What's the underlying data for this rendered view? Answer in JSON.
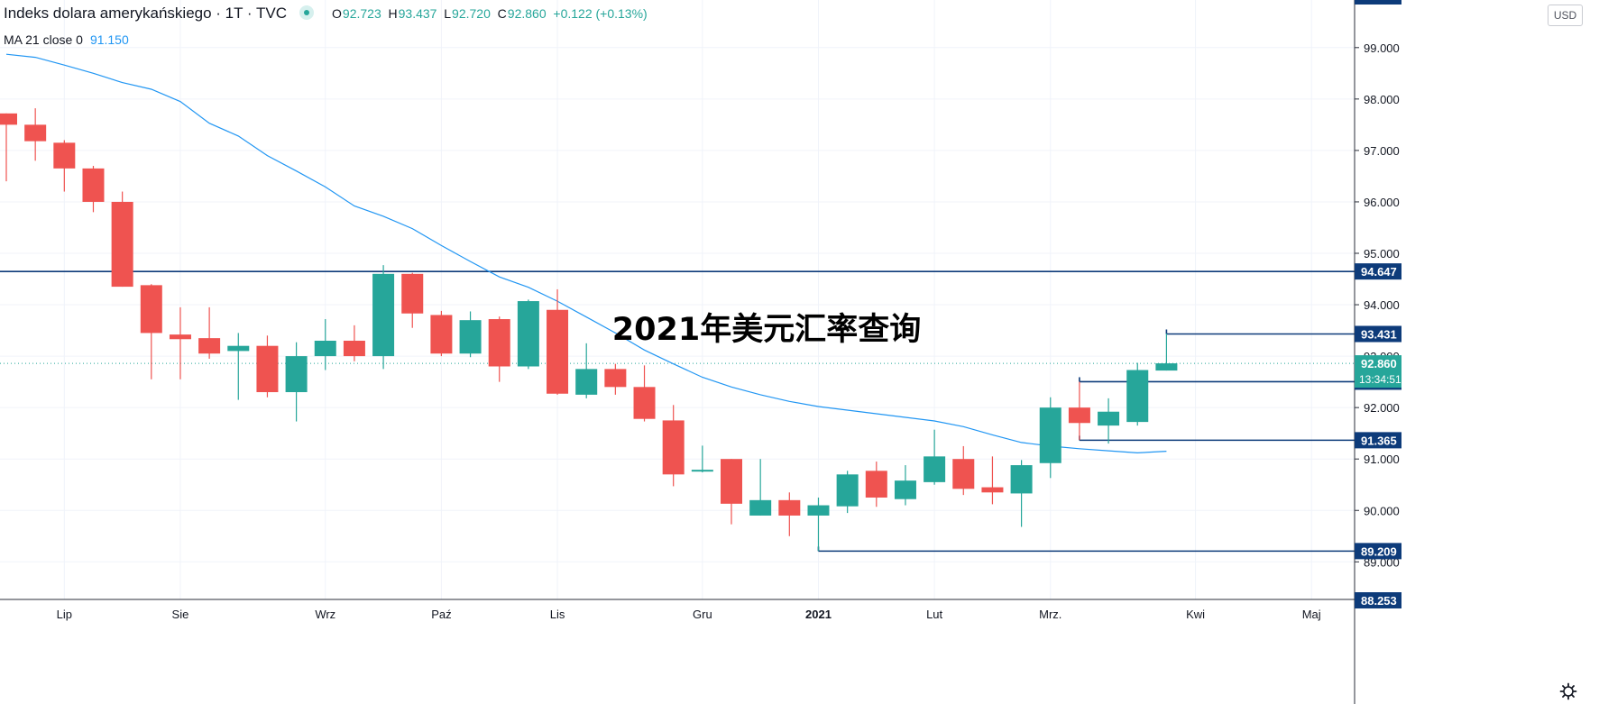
{
  "header": {
    "title": "Indeks dolara amerykańskiego · 1T · TVC",
    "open_label": "O",
    "open": "92.723",
    "high_label": "H",
    "high": "93.437",
    "low_label": "L",
    "low": "92.720",
    "close_label": "C",
    "close": "92.860",
    "change": "+0.122 (+0.13%)"
  },
  "indicator": {
    "label": "MA 21 close 0",
    "value": "91.150"
  },
  "overlay_text": "2021年美元汇率查询",
  "currency_button": "USD",
  "price_tags": {
    "countdown": "13:34:51"
  },
  "colors": {
    "up": "#26a69a",
    "down": "#ef5350",
    "ma": "#2196f3",
    "hline": "#0d3b7a",
    "grid": "#f0f3fa"
  },
  "chart_data": {
    "type": "candlestick",
    "y_ticks": [
      89.0,
      90.0,
      91.0,
      92.0,
      93.0,
      94.0,
      95.0,
      96.0,
      97.0,
      98.0,
      99.0
    ],
    "y_tick_labels": [
      "89.000",
      "90.000",
      "91.000",
      "92.000",
      "93.000",
      "94.000",
      "95.000",
      "96.000",
      "97.000",
      "98.000",
      "99.000"
    ],
    "y_edge_labels": [
      "88.253"
    ],
    "ylim": [
      88.2,
      100.0
    ],
    "x_labels": [
      {
        "label": "Lip",
        "candle": 2
      },
      {
        "label": "Sie",
        "candle": 6
      },
      {
        "label": "Wrz",
        "candle": 11
      },
      {
        "label": "Paź",
        "candle": 15
      },
      {
        "label": "Lis",
        "candle": 19
      },
      {
        "label": "Gru",
        "candle": 24
      },
      {
        "label": "2021",
        "candle": 28,
        "bold": true
      },
      {
        "label": "Lut",
        "candle": 32
      },
      {
        "label": "Mrz.",
        "candle": 36
      },
      {
        "label": "Kwi",
        "candle": 41
      },
      {
        "label": "Maj",
        "candle": 45
      }
    ],
    "candles": [
      {
        "o": 97.72,
        "h": 97.72,
        "l": 96.4,
        "c": 97.5
      },
      {
        "o": 97.5,
        "h": 97.82,
        "l": 96.8,
        "c": 97.18
      },
      {
        "o": 97.15,
        "h": 97.2,
        "l": 96.2,
        "c": 96.65
      },
      {
        "o": 96.65,
        "h": 96.7,
        "l": 95.8,
        "c": 96.0
      },
      {
        "o": 96.0,
        "h": 96.2,
        "l": 94.35,
        "c": 94.35
      },
      {
        "o": 94.38,
        "h": 94.4,
        "l": 92.55,
        "c": 93.45
      },
      {
        "o": 93.42,
        "h": 93.95,
        "l": 92.55,
        "c": 93.33
      },
      {
        "o": 93.35,
        "h": 93.95,
        "l": 92.95,
        "c": 93.05
      },
      {
        "o": 93.1,
        "h": 93.45,
        "l": 92.15,
        "c": 93.2
      },
      {
        "o": 93.2,
        "h": 93.4,
        "l": 92.2,
        "c": 92.3
      },
      {
        "o": 92.3,
        "h": 93.27,
        "l": 91.73,
        "c": 93.0
      },
      {
        "o": 93.0,
        "h": 93.72,
        "l": 92.73,
        "c": 93.3
      },
      {
        "o": 93.3,
        "h": 93.6,
        "l": 92.9,
        "c": 93.0
      },
      {
        "o": 93.0,
        "h": 94.77,
        "l": 92.75,
        "c": 94.6
      },
      {
        "o": 94.6,
        "h": 94.62,
        "l": 93.55,
        "c": 93.83
      },
      {
        "o": 93.8,
        "h": 93.88,
        "l": 93.0,
        "c": 93.05
      },
      {
        "o": 93.05,
        "h": 93.87,
        "l": 92.98,
        "c": 93.7
      },
      {
        "o": 93.72,
        "h": 93.77,
        "l": 92.5,
        "c": 92.8
      },
      {
        "o": 92.8,
        "h": 94.1,
        "l": 92.75,
        "c": 94.07
      },
      {
        "o": 93.9,
        "h": 94.3,
        "l": 92.25,
        "c": 92.27
      },
      {
        "o": 92.25,
        "h": 93.25,
        "l": 92.18,
        "c": 92.75
      },
      {
        "o": 92.75,
        "h": 92.85,
        "l": 92.25,
        "c": 92.4
      },
      {
        "o": 92.4,
        "h": 92.82,
        "l": 91.73,
        "c": 91.78
      },
      {
        "o": 91.75,
        "h": 92.05,
        "l": 90.47,
        "c": 90.7
      },
      {
        "o": 90.79,
        "h": 91.26,
        "l": 90.74,
        "c": 90.79
      },
      {
        "o": 91.0,
        "h": 91.0,
        "l": 89.73,
        "c": 90.13
      },
      {
        "o": 89.9,
        "h": 91.0,
        "l": 89.9,
        "c": 90.2
      },
      {
        "o": 90.2,
        "h": 90.35,
        "l": 89.5,
        "c": 89.9
      },
      {
        "o": 89.9,
        "h": 90.25,
        "l": 89.21,
        "c": 90.1
      },
      {
        "o": 90.08,
        "h": 90.77,
        "l": 89.95,
        "c": 90.7
      },
      {
        "o": 90.77,
        "h": 90.95,
        "l": 90.07,
        "c": 90.25
      },
      {
        "o": 90.22,
        "h": 90.88,
        "l": 90.1,
        "c": 90.58
      },
      {
        "o": 90.55,
        "h": 91.57,
        "l": 90.5,
        "c": 91.05
      },
      {
        "o": 91.0,
        "h": 91.25,
        "l": 90.3,
        "c": 90.42
      },
      {
        "o": 90.45,
        "h": 91.05,
        "l": 90.12,
        "c": 90.35
      },
      {
        "o": 90.33,
        "h": 90.98,
        "l": 89.68,
        "c": 90.88
      },
      {
        "o": 90.92,
        "h": 92.2,
        "l": 90.63,
        "c": 92.0
      },
      {
        "o": 92.0,
        "h": 92.5,
        "l": 91.37,
        "c": 91.7
      },
      {
        "o": 91.65,
        "h": 92.18,
        "l": 91.3,
        "c": 91.92
      },
      {
        "o": 91.72,
        "h": 92.87,
        "l": 91.65,
        "c": 92.73
      },
      {
        "o": 92.72,
        "h": 93.44,
        "l": 92.72,
        "c": 92.86
      }
    ],
    "moving_average": {
      "name": "MA 21 close 0",
      "values": [
        98.87,
        98.81,
        98.66,
        98.5,
        98.32,
        98.19,
        97.95,
        97.53,
        97.28,
        96.9,
        96.6,
        96.29,
        95.92,
        95.72,
        95.48,
        95.15,
        94.84,
        94.54,
        94.34,
        94.07,
        93.76,
        93.45,
        93.12,
        92.85,
        92.59,
        92.4,
        92.25,
        92.12,
        92.02,
        91.95,
        91.88,
        91.81,
        91.74,
        91.63,
        91.47,
        91.32,
        91.25,
        91.2,
        91.16,
        91.12,
        91.15
      ]
    },
    "horizontal_lines": [
      {
        "value": 94.647,
        "label": "94.647",
        "from_candle": -1
      },
      {
        "value": 93.431,
        "label": "93.431",
        "from_candle": 40
      },
      {
        "value": 92.503,
        "label": "92.503",
        "from_candle": 37
      },
      {
        "value": 91.365,
        "label": "91.365",
        "from_candle": 37
      },
      {
        "value": 89.209,
        "label": "89.209",
        "from_candle": 28
      }
    ],
    "last_price": {
      "value": 92.86,
      "label": "92.860"
    }
  }
}
